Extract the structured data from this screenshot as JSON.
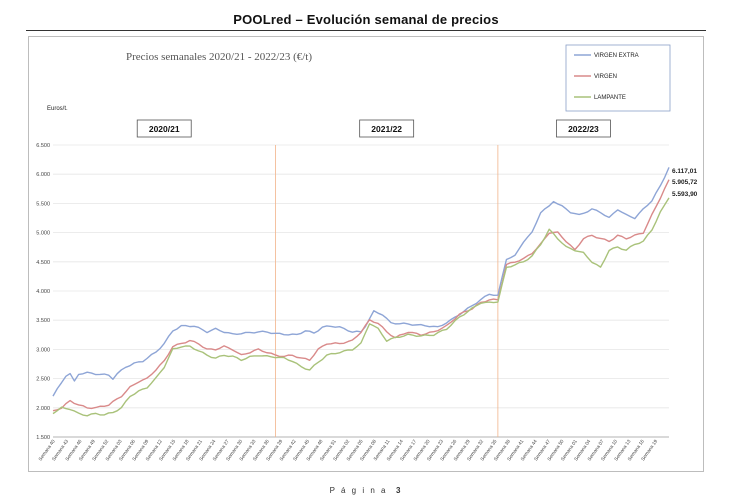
{
  "document": {
    "title": "POOLred – Evolución semanal de precios",
    "footer_label": "P á g i n a",
    "footer_page": "3"
  },
  "chart_data": {
    "type": "line",
    "title": "Precios semanales  2020/21 - 2022/23 (€/t)",
    "ylabel": "Euros/t.",
    "ylim": [
      1500,
      6500
    ],
    "yticks": [
      "6.500",
      "6.000",
      "5.500",
      "5.000",
      "4.500",
      "4.000",
      "3.500",
      "3.000",
      "2.500",
      "2.000",
      "1.500"
    ],
    "ytick_values": [
      6500,
      6000,
      5500,
      5000,
      4500,
      4000,
      3500,
      3000,
      2500,
      2000,
      1500
    ],
    "grid": true,
    "legend_position": "top-right",
    "periods": [
      "2020/21",
      "2021/22",
      "2022/23"
    ],
    "period_dividers_after_week_index": [
      52,
      104
    ],
    "xtick_labels": [
      "Semana 40",
      "Semana 43",
      "Semana 46",
      "Semana 49",
      "Semana 52",
      "Semana 03",
      "Semana 06",
      "Semana 09",
      "Semana 12",
      "Semana 15",
      "Semana 18",
      "Semana 21",
      "Semana 24",
      "Semana 27",
      "Semana 30",
      "Semana 33",
      "Semana 36",
      "Semana 39",
      "Semana 42",
      "Semana 45",
      "Semana 48",
      "Semana 51",
      "Semana 02",
      "Semana 05",
      "Semana 08",
      "Semana 11",
      "Semana 14",
      "Semana 17",
      "Semana 20",
      "Semana 23",
      "Semana 26",
      "Semana 29",
      "Semana 32",
      "Semana 35",
      "Semana 38",
      "Semana 41",
      "Semana 44",
      "Semana 47",
      "Semana 50",
      "Semana 01",
      "Semana 04",
      "Semana 07",
      "Semana 10",
      "Semana 13",
      "Semana 16",
      "Semana 19"
    ],
    "series": [
      {
        "name": "VIRGEN EXTRA",
        "color": "#8ea5d6",
        "end_label": "6.117,01",
        "anchors": [
          [
            0,
            2200
          ],
          [
            3,
            2550
          ],
          [
            4,
            2580
          ],
          [
            5,
            2450
          ],
          [
            6,
            2580
          ],
          [
            8,
            2600
          ],
          [
            10,
            2580
          ],
          [
            13,
            2560
          ],
          [
            14,
            2500
          ],
          [
            15,
            2580
          ],
          [
            17,
            2700
          ],
          [
            19,
            2760
          ],
          [
            21,
            2800
          ],
          [
            24,
            2950
          ],
          [
            26,
            3100
          ],
          [
            28,
            3320
          ],
          [
            30,
            3400
          ],
          [
            33,
            3400
          ],
          [
            36,
            3300
          ],
          [
            38,
            3350
          ],
          [
            40,
            3300
          ],
          [
            42,
            3260
          ],
          [
            45,
            3280
          ],
          [
            48,
            3300
          ],
          [
            50,
            3300
          ],
          [
            52,
            3270
          ],
          [
            54,
            3260
          ],
          [
            57,
            3250
          ],
          [
            59,
            3320
          ],
          [
            61,
            3280
          ],
          [
            63,
            3380
          ],
          [
            65,
            3400
          ],
          [
            67,
            3380
          ],
          [
            70,
            3300
          ],
          [
            72,
            3300
          ],
          [
            73,
            3400
          ],
          [
            75,
            3650
          ],
          [
            77,
            3600
          ],
          [
            79,
            3450
          ],
          [
            82,
            3440
          ],
          [
            85,
            3420
          ],
          [
            88,
            3400
          ],
          [
            90,
            3380
          ],
          [
            93,
            3500
          ],
          [
            96,
            3650
          ],
          [
            98,
            3750
          ],
          [
            100,
            3850
          ],
          [
            102,
            3950
          ],
          [
            104,
            3920
          ],
          [
            106,
            4550
          ],
          [
            108,
            4600
          ],
          [
            110,
            4850
          ],
          [
            112,
            5000
          ],
          [
            114,
            5350
          ],
          [
            116,
            5450
          ],
          [
            117,
            5540
          ],
          [
            119,
            5450
          ],
          [
            121,
            5350
          ],
          [
            123,
            5300
          ],
          [
            126,
            5400
          ],
          [
            128,
            5350
          ],
          [
            130,
            5250
          ],
          [
            132,
            5400
          ],
          [
            134,
            5300
          ],
          [
            136,
            5250
          ],
          [
            138,
            5400
          ],
          [
            140,
            5550
          ],
          [
            142,
            5800
          ],
          [
            144,
            6117
          ]
        ]
      },
      {
        "name": "VIRGEN",
        "color": "#d98a8a",
        "end_label": "5.905,72",
        "anchors": [
          [
            0,
            1950
          ],
          [
            2,
            2000
          ],
          [
            4,
            2120
          ],
          [
            6,
            2050
          ],
          [
            8,
            2000
          ],
          [
            10,
            2000
          ],
          [
            13,
            2050
          ],
          [
            14,
            2100
          ],
          [
            16,
            2200
          ],
          [
            18,
            2350
          ],
          [
            20,
            2450
          ],
          [
            22,
            2500
          ],
          [
            24,
            2650
          ],
          [
            26,
            2800
          ],
          [
            28,
            3050
          ],
          [
            30,
            3100
          ],
          [
            32,
            3150
          ],
          [
            34,
            3100
          ],
          [
            36,
            3000
          ],
          [
            38,
            3000
          ],
          [
            40,
            3050
          ],
          [
            42,
            3000
          ],
          [
            44,
            2900
          ],
          [
            46,
            2950
          ],
          [
            48,
            3000
          ],
          [
            50,
            2950
          ],
          [
            52,
            2900
          ],
          [
            54,
            2880
          ],
          [
            56,
            2900
          ],
          [
            58,
            2850
          ],
          [
            60,
            2820
          ],
          [
            62,
            3000
          ],
          [
            64,
            3100
          ],
          [
            67,
            3100
          ],
          [
            70,
            3150
          ],
          [
            72,
            3300
          ],
          [
            74,
            3500
          ],
          [
            76,
            3450
          ],
          [
            78,
            3300
          ],
          [
            80,
            3200
          ],
          [
            83,
            3300
          ],
          [
            86,
            3250
          ],
          [
            89,
            3300
          ],
          [
            92,
            3400
          ],
          [
            95,
            3600
          ],
          [
            98,
            3700
          ],
          [
            100,
            3800
          ],
          [
            102,
            3850
          ],
          [
            104,
            3850
          ],
          [
            106,
            4450
          ],
          [
            108,
            4500
          ],
          [
            110,
            4550
          ],
          [
            112,
            4650
          ],
          [
            114,
            4800
          ],
          [
            116,
            5000
          ],
          [
            118,
            5000
          ],
          [
            120,
            4850
          ],
          [
            122,
            4700
          ],
          [
            124,
            4900
          ],
          [
            126,
            4950
          ],
          [
            128,
            4900
          ],
          [
            130,
            4850
          ],
          [
            132,
            4950
          ],
          [
            134,
            4900
          ],
          [
            136,
            4950
          ],
          [
            138,
            5000
          ],
          [
            140,
            5300
          ],
          [
            142,
            5600
          ],
          [
            144,
            5906
          ]
        ]
      },
      {
        "name": "LAMPANTE",
        "color": "#a9c27a",
        "end_label": "5.593,90",
        "anchors": [
          [
            0,
            1900
          ],
          [
            2,
            2000
          ],
          [
            4,
            1980
          ],
          [
            6,
            1900
          ],
          [
            8,
            1870
          ],
          [
            10,
            1900
          ],
          [
            12,
            1880
          ],
          [
            14,
            1920
          ],
          [
            16,
            2000
          ],
          [
            18,
            2200
          ],
          [
            20,
            2280
          ],
          [
            22,
            2350
          ],
          [
            24,
            2500
          ],
          [
            26,
            2700
          ],
          [
            28,
            3000
          ],
          [
            30,
            3050
          ],
          [
            32,
            3050
          ],
          [
            34,
            2980
          ],
          [
            36,
            2900
          ],
          [
            38,
            2850
          ],
          [
            40,
            2900
          ],
          [
            42,
            2880
          ],
          [
            44,
            2820
          ],
          [
            46,
            2870
          ],
          [
            48,
            2900
          ],
          [
            50,
            2880
          ],
          [
            52,
            2870
          ],
          [
            54,
            2850
          ],
          [
            56,
            2800
          ],
          [
            58,
            2700
          ],
          [
            60,
            2650
          ],
          [
            62,
            2780
          ],
          [
            64,
            2900
          ],
          [
            67,
            2950
          ],
          [
            70,
            3000
          ],
          [
            72,
            3100
          ],
          [
            74,
            3450
          ],
          [
            76,
            3350
          ],
          [
            78,
            3150
          ],
          [
            80,
            3200
          ],
          [
            83,
            3250
          ],
          [
            86,
            3230
          ],
          [
            89,
            3250
          ],
          [
            92,
            3350
          ],
          [
            95,
            3550
          ],
          [
            98,
            3700
          ],
          [
            100,
            3800
          ],
          [
            102,
            3800
          ],
          [
            104,
            3820
          ],
          [
            106,
            4400
          ],
          [
            108,
            4450
          ],
          [
            110,
            4500
          ],
          [
            112,
            4600
          ],
          [
            114,
            4800
          ],
          [
            116,
            5050
          ],
          [
            118,
            4900
          ],
          [
            120,
            4750
          ],
          [
            122,
            4700
          ],
          [
            124,
            4650
          ],
          [
            126,
            4500
          ],
          [
            128,
            4400
          ],
          [
            130,
            4700
          ],
          [
            132,
            4750
          ],
          [
            134,
            4700
          ],
          [
            136,
            4800
          ],
          [
            138,
            4850
          ],
          [
            140,
            5050
          ],
          [
            142,
            5350
          ],
          [
            144,
            5594
          ]
        ]
      }
    ]
  }
}
